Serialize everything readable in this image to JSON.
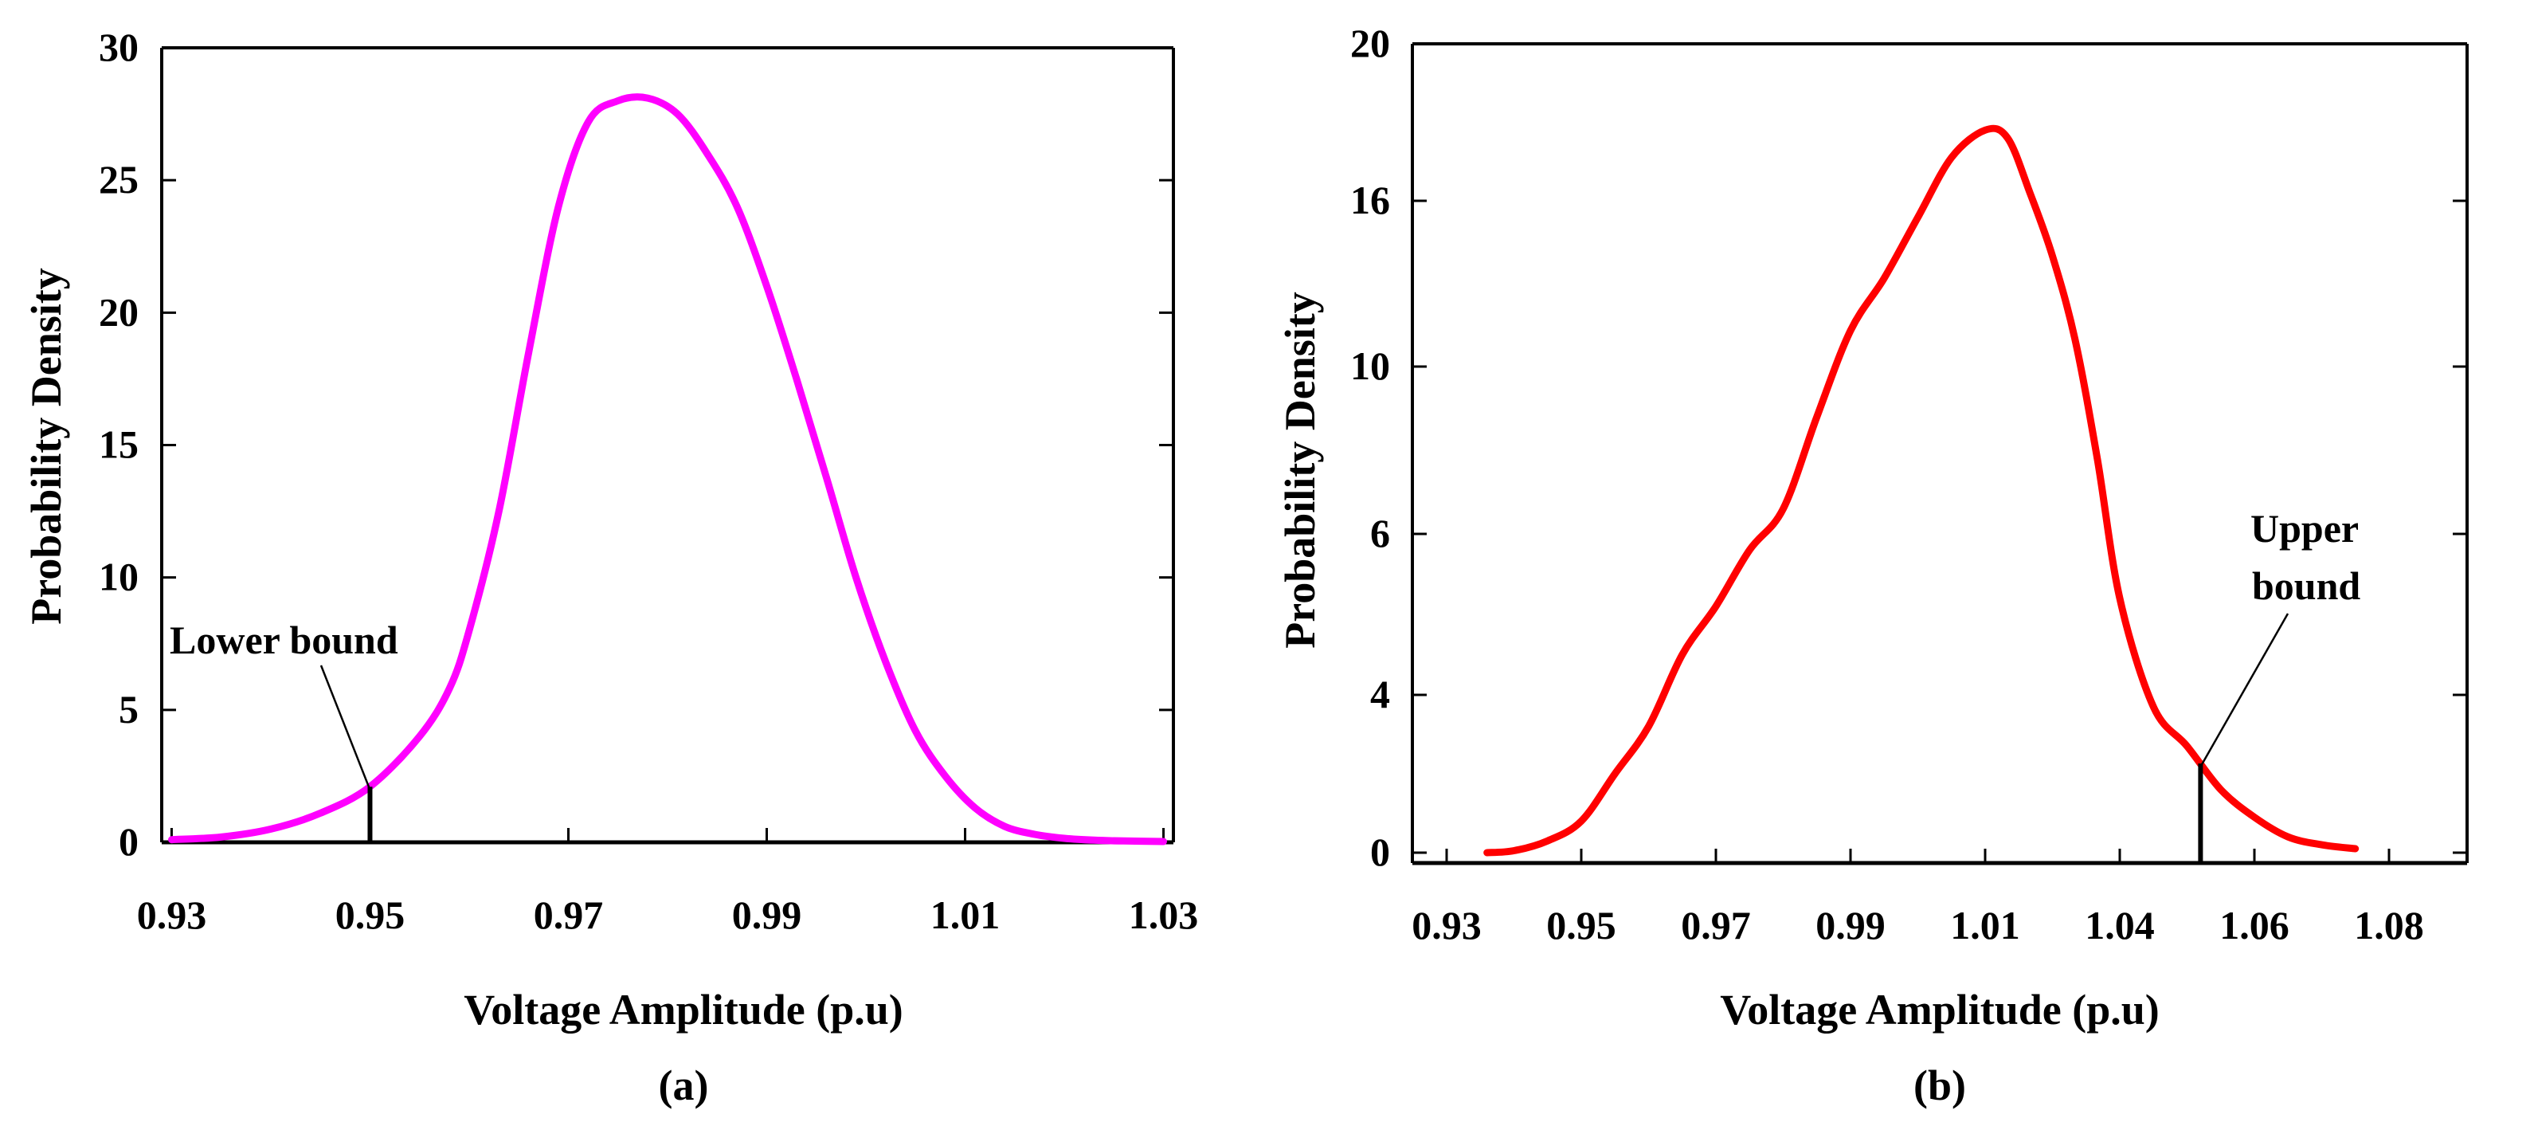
{
  "chart_data": [
    {
      "type": "line",
      "panel_label": "(a)",
      "xlabel": "Voltage Amplitude (p.u)",
      "ylabel": "Probability Density",
      "color": "#ff00ff",
      "xlim": [
        0.929,
        1.031
      ],
      "ylim": [
        0,
        30
      ],
      "xticks": [
        "0.93",
        "0.95",
        "0.97",
        "0.99",
        "1.01",
        "1.03"
      ],
      "yticks": [
        "0",
        "5",
        "10",
        "15",
        "20",
        "25",
        "30"
      ],
      "annotation": {
        "text": "Lower bound",
        "x": 0.95,
        "y": 2.1
      },
      "series": [
        {
          "name": "pdf",
          "x": [
            0.93,
            0.935,
            0.94,
            0.945,
            0.95,
            0.955,
            0.958,
            0.96,
            0.963,
            0.966,
            0.969,
            0.972,
            0.975,
            0.978,
            0.981,
            0.984,
            0.987,
            0.99,
            0.993,
            0.996,
            0.999,
            1.002,
            1.005,
            1.008,
            1.011,
            1.014,
            1.017,
            1.02,
            1.023,
            1.026,
            1.03
          ],
          "y": [
            0.1,
            0.2,
            0.5,
            1.1,
            2.1,
            4.0,
            5.8,
            8.0,
            12.5,
            18.5,
            24.0,
            27.2,
            28.0,
            28.1,
            27.5,
            26.0,
            24.0,
            21.0,
            17.5,
            13.8,
            10.0,
            6.8,
            4.2,
            2.5,
            1.3,
            0.6,
            0.3,
            0.15,
            0.08,
            0.05,
            0.03
          ]
        }
      ]
    },
    {
      "type": "line",
      "panel_label": "(b)",
      "xlabel": "Voltage Amplitude (p.u)",
      "ylabel": "Probability Density",
      "color": "#ff0000",
      "xticks": [
        "0.93",
        "0.95",
        "0.97",
        "0.99",
        "1.01",
        "1.04",
        "1.06",
        "1.08"
      ],
      "yticks": [
        "0",
        "4",
        "6",
        "10",
        "16",
        "20"
      ],
      "annotation": {
        "text": "Upper bound",
        "lines": [
          "Upper",
          "bound"
        ],
        "x": 1.052,
        "y": 2.7
      },
      "series": [
        {
          "name": "pdf",
          "x": [
            0.936,
            0.94,
            0.945,
            0.95,
            0.955,
            0.96,
            0.965,
            0.97,
            0.975,
            0.98,
            0.985,
            0.99,
            0.995,
            1.0,
            1.005,
            1.01,
            1.015,
            1.02,
            1.025,
            1.03,
            1.035,
            1.04,
            1.045,
            1.05,
            1.055,
            1.06,
            1.065,
            1.07,
            1.075
          ],
          "y": [
            0.0,
            0.05,
            0.3,
            0.8,
            2.0,
            3.2,
            4.5,
            5.1,
            5.8,
            6.6,
            8.8,
            11.3,
            13.2,
            15.4,
            17.1,
            17.8,
            17.6,
            16.2,
            14.0,
            11.0,
            7.8,
            5.2,
            3.7,
            2.7,
            1.6,
            0.9,
            0.4,
            0.2,
            0.1
          ]
        }
      ]
    }
  ]
}
